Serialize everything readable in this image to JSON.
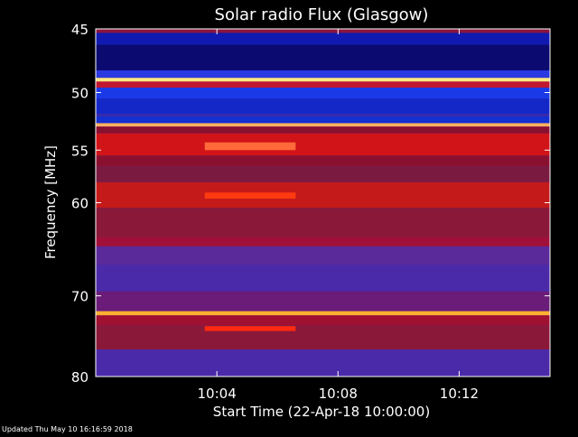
{
  "chart_data": {
    "type": "heatmap",
    "title": "Solar radio Flux (Glasgow)",
    "xlabel": "Start Time (22-Apr-18 10:00:00)",
    "ylabel": "Frequency [MHz]",
    "footer": "Updated Thu May 10 16:16:59 2018",
    "x_unit": "minutes",
    "xlim": [
      0,
      15
    ],
    "ylim": [
      45,
      80
    ],
    "y_scale": "log",
    "y_inverted": true,
    "x_ticks": [
      {
        "value": 4,
        "label": "10:04"
      },
      {
        "value": 8,
        "label": "10:08"
      },
      {
        "value": 12,
        "label": "10:12"
      }
    ],
    "y_ticks": [
      {
        "value": 45,
        "label": "45"
      },
      {
        "value": 50,
        "label": "50"
      },
      {
        "value": 55,
        "label": "55"
      },
      {
        "value": 60,
        "label": "60"
      },
      {
        "value": 70,
        "label": "70"
      },
      {
        "value": 80,
        "label": "80"
      }
    ],
    "colormap": {
      "low": "#1010a0",
      "mid_low": "#5a2aa8",
      "mid": "#b0102a",
      "high": "#ff2a00",
      "peak": "#ffe880"
    },
    "bands": [
      {
        "f_from": 45.0,
        "f_to": 45.3,
        "color": "#8a1440"
      },
      {
        "f_from": 45.3,
        "f_to": 46.2,
        "color": "#101ab0"
      },
      {
        "f_from": 46.2,
        "f_to": 48.2,
        "color": "#0a0a70"
      },
      {
        "f_from": 48.2,
        "f_to": 48.8,
        "color": "#2a3ae0"
      },
      {
        "f_from": 48.8,
        "f_to": 49.1,
        "color": "#ffe880"
      },
      {
        "f_from": 49.1,
        "f_to": 49.6,
        "color": "#c01830"
      },
      {
        "f_from": 49.6,
        "f_to": 50.5,
        "color": "#1a3ae8"
      },
      {
        "f_from": 50.5,
        "f_to": 51.8,
        "color": "#1428c8"
      },
      {
        "f_from": 51.8,
        "f_to": 52.0,
        "color": "#3a2aa8"
      },
      {
        "f_from": 52.0,
        "f_to": 52.6,
        "color": "#1430d0"
      },
      {
        "f_from": 52.6,
        "f_to": 52.9,
        "color": "#ffb060"
      },
      {
        "f_from": 52.9,
        "f_to": 53.5,
        "color": "#8a1030"
      },
      {
        "f_from": 53.5,
        "f_to": 55.5,
        "color": "#d01418"
      },
      {
        "f_from": 55.5,
        "f_to": 56.5,
        "color": "#8a1030"
      },
      {
        "f_from": 56.5,
        "f_to": 58.0,
        "color": "#7a1a40"
      },
      {
        "f_from": 58.0,
        "f_to": 60.5,
        "color": "#c41a1a"
      },
      {
        "f_from": 60.5,
        "f_to": 63.5,
        "color": "#8a1838"
      },
      {
        "f_from": 63.5,
        "f_to": 64.5,
        "color": "#a01038"
      },
      {
        "f_from": 64.5,
        "f_to": 66.5,
        "color": "#5a2a9a"
      },
      {
        "f_from": 66.5,
        "f_to": 69.5,
        "color": "#4a2aa8"
      },
      {
        "f_from": 69.5,
        "f_to": 71.8,
        "color": "#6a1c78"
      },
      {
        "f_from": 71.8,
        "f_to": 72.3,
        "color": "#ffb030"
      },
      {
        "f_from": 72.3,
        "f_to": 73.5,
        "color": "#a01030"
      },
      {
        "f_from": 73.5,
        "f_to": 76.5,
        "color": "#8a1838"
      },
      {
        "f_from": 76.5,
        "f_to": 80.0,
        "color": "#4a2aa8"
      }
    ],
    "bursts": [
      {
        "t_from": 3.6,
        "t_to": 6.6,
        "f_from": 54.3,
        "f_to": 55.0,
        "color": "#ff6a3a"
      },
      {
        "t_from": 3.6,
        "t_to": 6.6,
        "f_from": 59.0,
        "f_to": 59.6,
        "color": "#ff3a10"
      },
      {
        "t_from": 3.6,
        "t_to": 6.6,
        "f_from": 73.6,
        "f_to": 74.2,
        "color": "#ff2a10"
      }
    ]
  }
}
